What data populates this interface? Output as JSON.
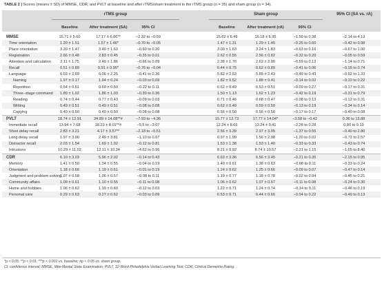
{
  "caption": {
    "table_no": "TABLE 2 |",
    "text": " Scores (means ± SD) of MMSE, CDR, and PVLT at baseline and after rTMS/sham treatment in the rTMS group (n = 35) and sham group (n = 34)."
  },
  "header": {
    "group1": "rTMS group",
    "group2": "Sham group",
    "ci_title": "95% CI (SA vs. rA)",
    "col_baseline1": "Baseline",
    "col_after1": "After treatment (SA)",
    "col_ci1": "95% CI",
    "col_baseline2": "Baseline",
    "col_after2": "After treatment (rA)",
    "col_ci2": "95% CI"
  },
  "rows": [
    {
      "type": "cat",
      "label": "MMSE",
      "b1": "15.71 ± 5.60",
      "a1": "17.17 ± 6.06**",
      "ci1": "−2.32 to −0.59",
      "b2": "15.62 ± 6.49",
      "a2": "16.18 ± 6.95",
      "ci2": "−1.50 to 0.38",
      "ci": "−2.14 to 4.13"
    },
    {
      "type": "sub",
      "label": "Time orientation",
      "b1": "1.20 ± 1.51",
      "a1": "1.57 ± 1.46*",
      "ci1": "−0.70 to −0.05",
      "b2": "1.47 ± 1.31",
      "a2": "1.29 ± 1.45",
      "ci2": "−0.25 to 0.60",
      "ci": "−0.42 to 0.98"
    },
    {
      "type": "sub",
      "label": "Place orientation",
      "b1": "3.20 ± 1.47",
      "a1": "3.40 ± 1.63",
      "ci1": "−0.60 to 0.20",
      "b2": "3.00 ± 1.63",
      "a2": "3.24 ± 1.83",
      "ci2": "−0.63 to 0.16",
      "ci": "−0.67 to 1.00"
    },
    {
      "type": "sub",
      "label": "Registration",
      "b1": "2.66 ± 0.48",
      "a1": "2.83 ± 0.45",
      "ci1": "−0.35 to 0.01",
      "b2": "2.62 ± 0.55",
      "a2": "2.56 ± 0.82",
      "ci2": "−0.32 to 0.20",
      "ci": "−0.05 to 0.59"
    },
    {
      "type": "sub",
      "label": "Attention and calculation",
      "b1": "2.11 ± 1.75",
      "a1": "2.40 ± 1.86",
      "ci1": "−0.66 to 0.09",
      "b2": "2.38 ± 1.76",
      "a2": "2.62 ± 2.00",
      "ci2": "−0.59 to 0.12",
      "ci": "−1.14 to 0.71"
    },
    {
      "type": "sub",
      "label": "Recall",
      "b1": "0.51 ± 0.89",
      "a1": "0.91 ± 0.95*",
      "ci1": "−0.76 to −0.04",
      "b2": "0.44 ± 0.75",
      "a2": "0.62 ± 0.89",
      "ci2": "−0.41 to 0.06",
      "ci": "−0.15 to 0.74"
    },
    {
      "type": "sub",
      "label": "Language",
      "b1": "6.03 ± 2.09",
      "a1": "6.06 ± 2.25",
      "ci1": "−0.41 to 0.36",
      "b2": "5.82 ± 2.53",
      "a2": "5.85 ± 2.43",
      "ci2": "−0.49 to 0.43",
      "ci": "−0.92 to 1.33"
    },
    {
      "type": "sub2",
      "label": "Naming",
      "b1": "1.97 ± 0.17",
      "a1": "1.94 ± 0.24",
      "ci1": "−0.03 to 0.09",
      "b2": "1.82 ± 0.52",
      "a2": "1.88 ± 0.41",
      "ci2": "−0.14 to 0.02",
      "ci": "−0.10 to 0.22"
    },
    {
      "type": "sub2",
      "label": "Repetition",
      "b1": "0.54 ± 0.51",
      "a1": "0.60 ± 0.50",
      "ci1": "−0.22 to 0.11",
      "b2": "0.62 ± 0.49",
      "a2": "0.53 ± 0.51",
      "ci2": "−0.09 to 0.27",
      "ci": "−0.17 to 0.31"
    },
    {
      "type": "sub2",
      "label": "Three−stage command",
      "b1": "1.89 ± 1.02",
      "a1": "1.86 ± 1.03",
      "ci1": "−0.30 to 0.36",
      "b2": "1.50 ± 1.13",
      "a2": "1.62 ± 1.23",
      "ci2": "−0.42 to 0.19",
      "ci": "−0.31 to 0.79"
    },
    {
      "type": "sub2",
      "label": "Reading",
      "b1": "0.74 ± 0.44",
      "a1": "0.77 ± 0.43",
      "ci1": "−0.09 to 0.03",
      "b2": "0.71 ± 0.46",
      "a2": "0.68 ± 0.47",
      "ci2": "−0.08 to 0.13",
      "ci": "−0.12 to 0.31"
    },
    {
      "type": "sub2",
      "label": "Writing",
      "b1": "0.49 ± 0.51",
      "a1": "0.49 ± 0.51",
      "ci1": "−0.08 to 0.08",
      "b2": "0.62 ± 0.49",
      "a2": "0.59 ± 0.50",
      "ci2": "−0.13 to 0.19",
      "ci": "−0.34 to 0.14"
    },
    {
      "type": "sub2",
      "label": "Copying",
      "b1": "0.40 ± 0.50",
      "a1": "0.40 ± 0.50",
      "ci1": "−0.08 to 0.08",
      "b2": "0.56 ± 0.50",
      "a2": "0.56 ± 0.50",
      "ci2": "−0.17 to 0.17",
      "ci": "−0.40 to 0.08"
    },
    {
      "type": "cat",
      "label": "PVLT",
      "b1": "18.74 ± 12.91",
      "a1": "24.89 ± 14.08**#",
      "ci1": "−7.93 to −4.36",
      "b2": "15.77 ± 12.73",
      "a2": "17.77 ± 14.04*",
      "ci2": "−3.58 to −0.42",
      "ci": "0.36 to 13.88"
    },
    {
      "type": "sub",
      "label": "Immediate recall",
      "b1": "13.94 ± 7.68",
      "a1": "18.23 ± 8.01**#",
      "ci1": "−5.5 to −3.07",
      "b2": "12.24 ± 8.65",
      "a2": "13.24 ± 9.41",
      "ci2": "−2.28 to 0.28",
      "ci": "0.80 to 9.19"
    },
    {
      "type": "sub",
      "label": "Short delay recall",
      "b1": "2.83 ± 3.21",
      "a1": "4.17 ± 3.57**",
      "ci1": "−2.18 to −0.51",
      "b2": "2.56 ± 3.39",
      "a2": "2.97 ± 3.05",
      "ci2": "−1.37 to 0.55",
      "ci": "−0.40 to 2.80"
    },
    {
      "type": "sub",
      "label": "Long delay recall",
      "b1": "1.97 ± 3.00",
      "a1": "2.49 ± 3.81",
      "ci1": "−1.10 to 0.07",
      "b2": "0.97 ± 1.99",
      "a2": "1.56 ± 2.98",
      "ci2": "−1.20 to 0.02",
      "ci": "−0.72 to 2.57"
    },
    {
      "type": "sub",
      "label": "Distractor recall",
      "b1": "2.03 ± 1.54",
      "a1": "1.69 ± 1.02",
      "ci1": "−0.12 to 0.81",
      "b2": "1.53 ± 1.38",
      "a2": "1.53 ± 1.40",
      "ci2": "−0.33 to 0.33",
      "ci": "−0.43 to 0.74"
    },
    {
      "type": "sub",
      "label": "Intrusions",
      "b1": "10.29 ± 11.02",
      "a1": "12.11 ± 10.34",
      "ci1": "−4.62 to 0.96",
      "b2": "8.21 ± 9.92",
      "a2": "8.74 ± 10.57",
      "ci2": "−2.21 to 1.15",
      "ci": "−1.65 to 8.40"
    },
    {
      "type": "cat",
      "label": "CDR",
      "b1": "6.10 ± 3.03",
      "a1": "5.96 ± 2.92",
      "ci1": "−0.14 to 0.43",
      "b2": "6.63 ± 3.36",
      "a2": "6.56 ± 3.45",
      "ci2": "−0.21 to 0.35",
      "ci": "−2.15 to 0.95"
    },
    {
      "type": "sub",
      "label": "Memory",
      "b1": "1.41 ± 0.50",
      "a1": "1.34 ± 0.55",
      "ci1": "−0.04 to 0.19",
      "b2": "1.40 ± 0.61",
      "a2": "1.38 ± 0.63",
      "ci2": "−0.08 to 0.11",
      "ci": "−0.33 to 0.24"
    },
    {
      "type": "sub",
      "label": "Orientation",
      "b1": "1.18 ± 0.66",
      "a1": "1.19 ± 0.61",
      "ci1": "−0.01 to 0.19",
      "b2": "1.24 ± 0.62",
      "a2": "1.25 ± 0.66",
      "ci2": "−0.09 to 0.07",
      "ci": "−0.47 to 0.14"
    },
    {
      "type": "sub",
      "label": "Judgment and problem solving",
      "b1": "1.07 ± 0.58",
      "a1": "1.06 ± 0.57",
      "ci1": "−0.08 to 0.11",
      "b2": "1.19 ± 0.77",
      "a2": "1.18 ± 0.78",
      "ci2": "−0.02 to 0.04",
      "ci": "−0.45 to 0.21"
    },
    {
      "type": "sub",
      "label": "Community affairs",
      "b1": "1.09 ± 0.61",
      "a1": "1.10 ± 0.55",
      "ci1": "−0.11 to 0.08",
      "b2": "1.06 ± 0.62",
      "a2": "1.07 ± 0.57",
      "ci2": "−0.11 to 0.08",
      "ci": "−0.24 to 0.30"
    },
    {
      "type": "sub",
      "label": "Home and hobbies",
      "b1": "1.06 ± 0.62",
      "a1": "1.10 ± 0.60",
      "ci1": "−0.12 to 0.03",
      "b2": "1.22 ± 0.71",
      "a2": "1.24 ± 0.74",
      "ci2": "−0.14 to 0.11",
      "ci": "−0.46 to 0.19"
    },
    {
      "type": "sub",
      "label": "Personal care",
      "b1": "0.29 ± 0.63",
      "a1": "0.27 ± 0.62",
      "ci1": "−0.03 to 0.09",
      "b2": "0.53 ± 0.71",
      "a2": "0.44 ± 0.66",
      "ci2": "−0.04 to 0.22",
      "ci": "−0.49 to 0.13"
    }
  ],
  "footnotes": {
    "line1": "*p < 0.05; **p < 0.01; ***p < 0.001 vs. baseline; #p < 0.05 vs. sham group.",
    "line2": "CI, confidence interval; MMSE, Mini-Mental State Examination; PVLT, 12-Word Philadelphia Verbal Learning Test; CDR, Clinical Dementia Rating."
  }
}
